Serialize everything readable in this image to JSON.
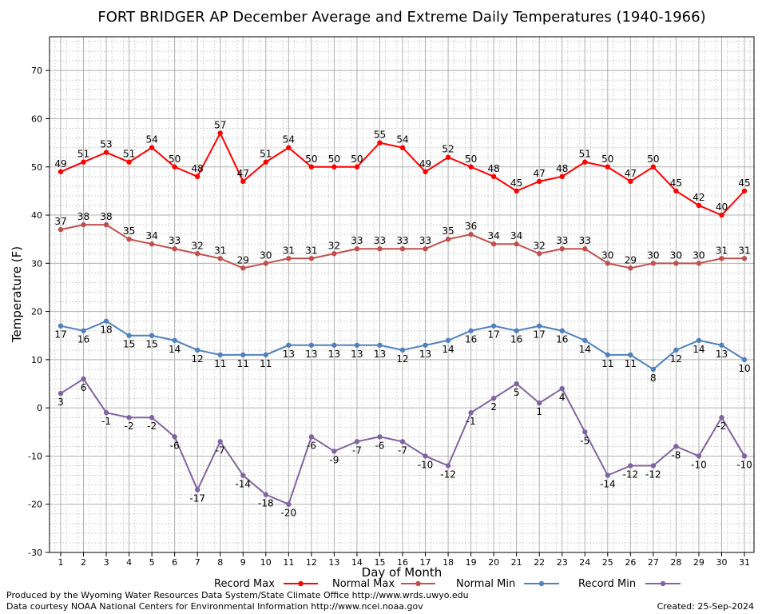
{
  "chart_data": {
    "type": "line",
    "title": "FORT BRIDGER AP December Average and Extreme Daily Temperatures (1940-1966)",
    "xlabel": "Day of Month",
    "ylabel": "Temperature (F)",
    "ylim": [
      -30,
      77
    ],
    "yticks": [
      -30,
      -20,
      -10,
      0,
      10,
      20,
      30,
      40,
      50,
      60,
      70
    ],
    "x": [
      1,
      2,
      3,
      4,
      5,
      6,
      7,
      8,
      9,
      10,
      11,
      12,
      13,
      14,
      15,
      16,
      17,
      18,
      19,
      20,
      21,
      22,
      23,
      24,
      25,
      26,
      27,
      28,
      29,
      30,
      31
    ],
    "grid": true,
    "legend_position": "bottom",
    "series": [
      {
        "name": "Record Max",
        "color": "#ff0000",
        "label_position": "above",
        "values": [
          49,
          51,
          53,
          51,
          54,
          50,
          48,
          57,
          47,
          51,
          54,
          50,
          50,
          50,
          55,
          54,
          49,
          52,
          50,
          48,
          45,
          47,
          48,
          51,
          50,
          47,
          50,
          45,
          42,
          40,
          45
        ]
      },
      {
        "name": "Normal Max",
        "color": "#c0504d",
        "label_position": "above",
        "values": [
          37,
          38,
          38,
          35,
          34,
          33,
          32,
          31,
          29,
          30,
          31,
          31,
          32,
          33,
          33,
          33,
          33,
          35,
          36,
          34,
          34,
          32,
          33,
          33,
          30,
          29,
          30,
          30,
          30,
          31,
          31
        ]
      },
      {
        "name": "Normal Min",
        "color": "#4f81bd",
        "label_position": "below",
        "values": [
          17,
          16,
          18,
          15,
          15,
          14,
          12,
          11,
          11,
          11,
          13,
          13,
          13,
          13,
          13,
          12,
          13,
          14,
          16,
          17,
          16,
          17,
          16,
          14,
          11,
          11,
          8,
          12,
          14,
          13,
          10
        ]
      },
      {
        "name": "Record Min",
        "color": "#8064a2",
        "label_position": "below",
        "values": [
          3,
          6,
          -1,
          -2,
          -2,
          -6,
          -17,
          -7,
          -14,
          -18,
          -20,
          -6,
          -9,
          -7,
          -6,
          -7,
          -10,
          -12,
          -1,
          2,
          5,
          1,
          4,
          -5,
          -14,
          -12,
          -12,
          -8,
          -10,
          -2,
          -10
        ]
      }
    ]
  },
  "footer": {
    "produced_by": "Produced by the Wyoming Water Resources Data System/State Climate Office http://www.wrds.uwyo.edu",
    "courtesy": "Data courtesy NOAA National Centers for Environmental Information http://www.ncei.noaa.gov",
    "created": "Created: 25-Sep-2024"
  }
}
